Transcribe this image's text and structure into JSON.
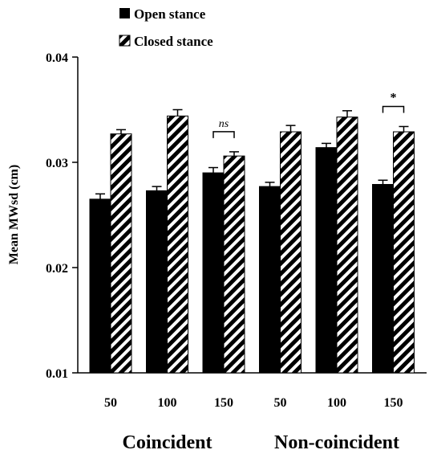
{
  "chart_data": {
    "type": "bar",
    "title": "",
    "ylabel": "Mean MWsd (cm)",
    "xlabel": "",
    "ylim": [
      0.01,
      0.04
    ],
    "yticks": [
      "0.01",
      "0.02",
      "0.03",
      "0.04"
    ],
    "categories": [
      "50",
      "100",
      "150",
      "50",
      "100",
      "150"
    ],
    "groups": [
      {
        "label": "Coincident",
        "category_indices": [
          0,
          1,
          2
        ]
      },
      {
        "label": "Non-coincident",
        "category_indices": [
          3,
          4,
          5
        ]
      }
    ],
    "legend_position": "top-left",
    "series": [
      {
        "name": "Open stance",
        "fill": "solid-black",
        "values": [
          0.0265,
          0.0273,
          0.029,
          0.0277,
          0.0314,
          0.0279
        ],
        "errors": [
          0.0005,
          0.0004,
          0.0005,
          0.0004,
          0.0004,
          0.0004
        ]
      },
      {
        "name": "Closed stance",
        "fill": "diagonal-hatch",
        "values": [
          0.0327,
          0.0344,
          0.0306,
          0.0329,
          0.0343,
          0.0329
        ],
        "errors": [
          0.0004,
          0.0006,
          0.0004,
          0.0006,
          0.0006,
          0.0005
        ]
      }
    ],
    "annotations": [
      {
        "category_index": 2,
        "text": "ns",
        "style": "italic"
      },
      {
        "category_index": 5,
        "text": "*",
        "style": "bold"
      }
    ],
    "colors": {
      "open": "#000000",
      "closed_stripe": "#000000",
      "closed_bg": "#ffffff"
    }
  }
}
